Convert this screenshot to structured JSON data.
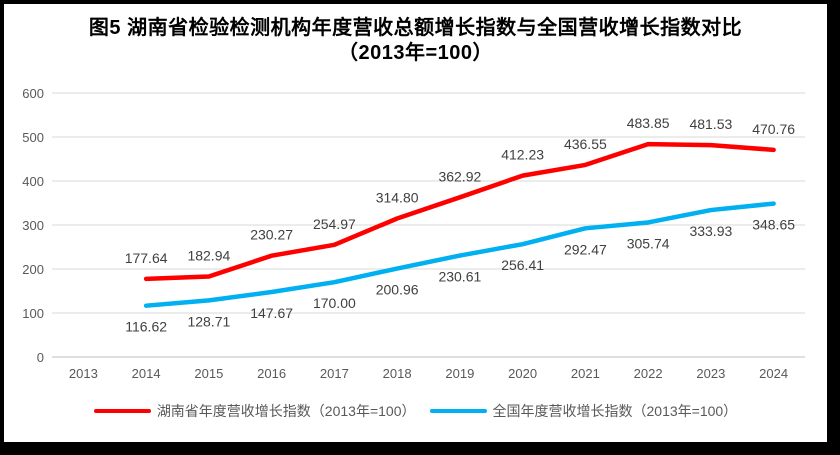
{
  "title": {
    "line1": "图5 湖南省检验检测机构年度营收总额增长指数与全国营收增长指数对比",
    "line2": "（2013年=100）"
  },
  "chart_data": {
    "type": "line",
    "title": "图5 湖南省检验检测机构年度营收总额增长指数与全国营收增长指数对比（2013年=100）",
    "categories": [
      "2013",
      "2014",
      "2015",
      "2016",
      "2017",
      "2018",
      "2019",
      "2020",
      "2021",
      "2022",
      "2023",
      "2024"
    ],
    "series": [
      {
        "name": "湖南省年度营收增长指数（2013年=100）",
        "color": "#FF0000",
        "values": [
          null,
          177.64,
          182.94,
          230.27,
          254.97,
          314.8,
          362.92,
          412.23,
          436.55,
          483.85,
          481.53,
          470.76
        ]
      },
      {
        "name": "全国年度营收增长指数（2013年=100）",
        "color": "#00B0F0",
        "values": [
          null,
          116.62,
          128.71,
          147.67,
          170.0,
          200.96,
          230.61,
          256.41,
          292.47,
          305.74,
          333.93,
          348.65
        ]
      }
    ],
    "xlabel": "",
    "ylabel": "",
    "ylim": [
      0,
      600
    ],
    "yticks": [
      0,
      100,
      200,
      300,
      400,
      500,
      600
    ],
    "grid": true,
    "data_labels": true,
    "legend_position": "bottom",
    "colors": {
      "gridline": "#D9D9D9",
      "axis_line": "#BFBFBF",
      "axis_text": "#595959",
      "data_label": "#404040",
      "background": "#FFFFFF",
      "frame_border": "#000000"
    }
  }
}
